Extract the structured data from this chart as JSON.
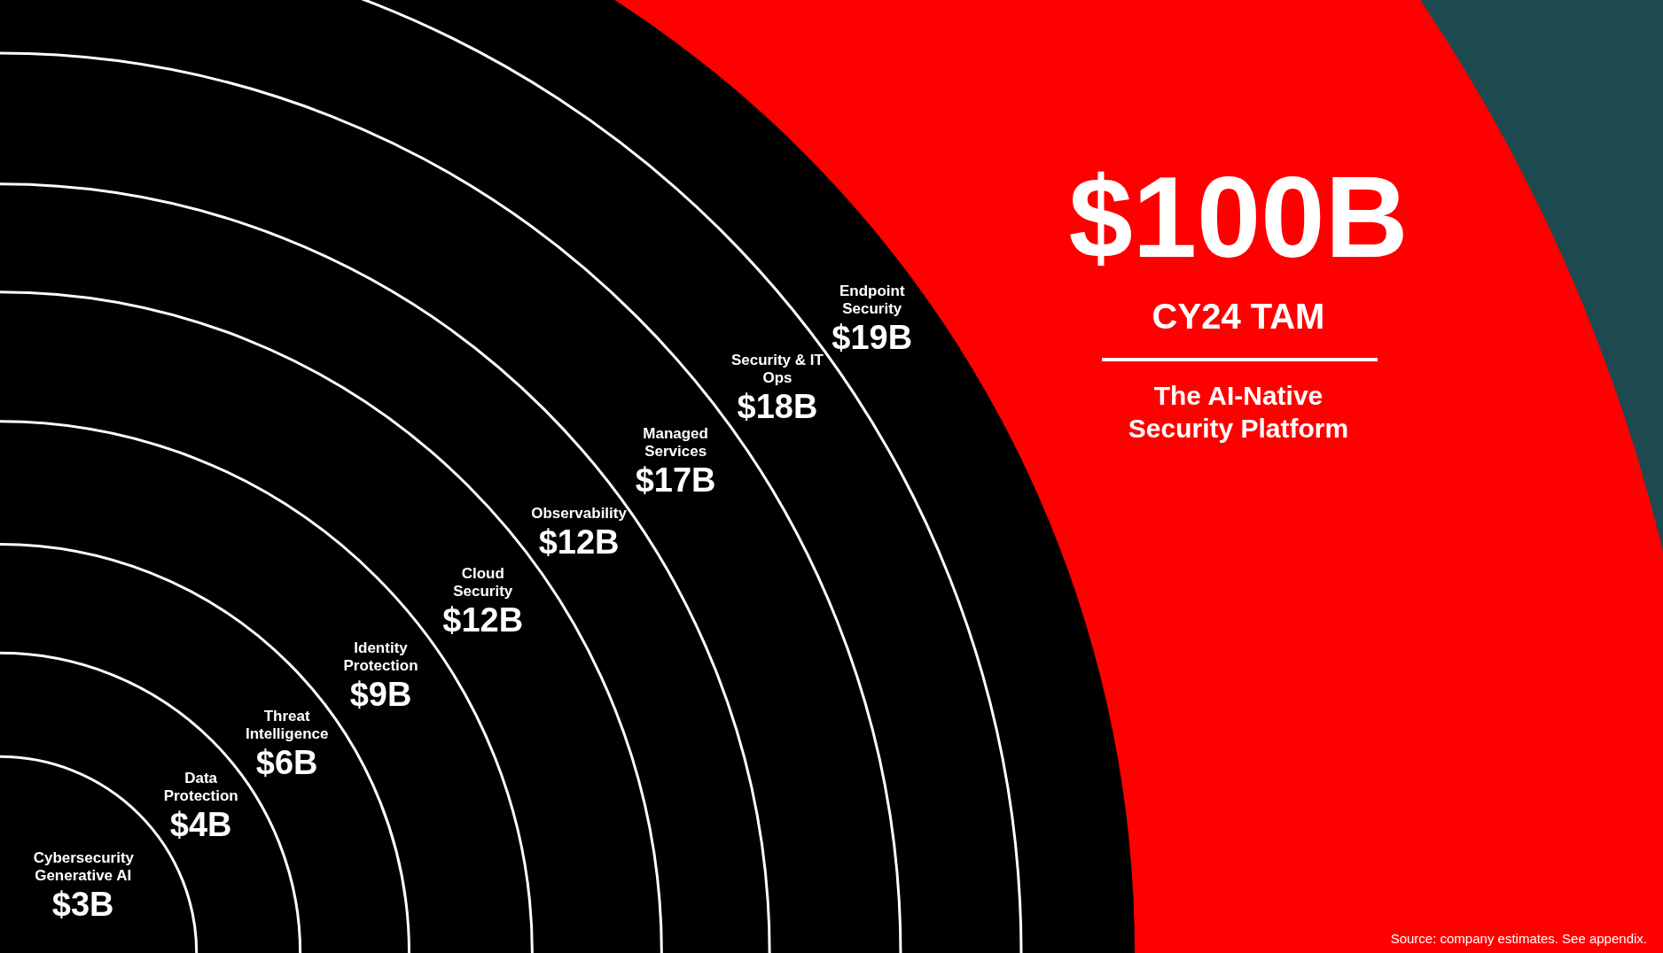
{
  "chart_data": {
    "type": "other",
    "title": "$100B",
    "subtitle": "CY24 TAM",
    "categories": [
      "Cybersecurity Generative AI",
      "Data Protection",
      "Threat Intelligence",
      "Identity Protection",
      "Cloud Security",
      "Observability",
      "Managed Services",
      "Security & IT Ops",
      "Endpoint Security"
    ],
    "values": [
      3,
      4,
      6,
      9,
      12,
      12,
      17,
      18,
      19
    ],
    "value_labels": [
      "$3B",
      "$4B",
      "$6B",
      "$9B",
      "$12B",
      "$12B",
      "$17B",
      "$18B",
      "$19B"
    ],
    "colors": [
      "#000000",
      "#000000",
      "#000000",
      "#000000",
      "#000000",
      "#000000",
      "#000000",
      "#000000",
      "#000000"
    ],
    "annotations": [
      "The AI-Native Security Platform",
      "Source: company estimates. See appendix."
    ]
  }
}
